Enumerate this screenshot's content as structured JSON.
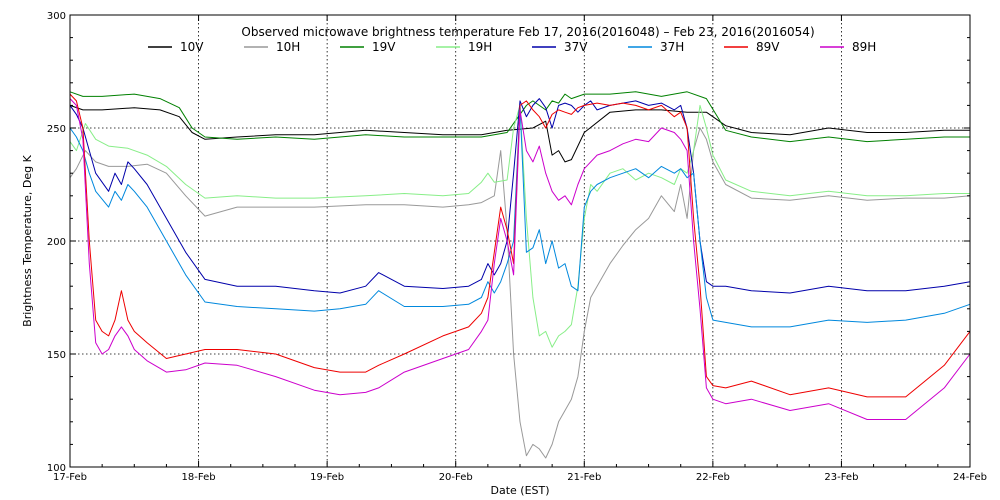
{
  "chart_data": {
    "type": "line",
    "title": "Observed microwave brightness temperature Feb 17, 2016(2016048) – Feb 23, 2016(2016054)",
    "xlabel": "Date (EST)",
    "ylabel": "Brightness Temperature, Deg K",
    "xlim": [
      0,
      7
    ],
    "ylim": [
      100,
      300
    ],
    "categories": [
      "17-Feb",
      "18-Feb",
      "19-Feb",
      "20-Feb",
      "21-Feb",
      "22-Feb",
      "23-Feb",
      "24-Feb"
    ],
    "yticks": [
      "100",
      "150",
      "200",
      "250",
      "300"
    ],
    "ytick_values": [
      100,
      150,
      200,
      250,
      300
    ],
    "grid": true,
    "legend_position": "top",
    "series": [
      {
        "name": "10V",
        "color": "#000000",
        "x": [
          0,
          0.1,
          0.25,
          0.5,
          0.7,
          0.85,
          0.95,
          1.05,
          1.3,
          1.6,
          1.9,
          2.3,
          2.6,
          2.9,
          3.2,
          3.4,
          3.6,
          3.7,
          3.75,
          3.8,
          3.85,
          3.9,
          4.0,
          4.2,
          4.4,
          4.6,
          4.8,
          4.95,
          5.1,
          5.3,
          5.6,
          5.9,
          6.2,
          6.5,
          6.8,
          7.0
        ],
        "values": [
          260,
          258,
          258,
          259,
          258,
          255,
          248,
          245,
          246,
          247,
          247,
          249,
          248,
          247,
          247,
          249,
          250,
          253,
          238,
          240,
          235,
          236,
          248,
          257,
          258,
          258,
          257,
          257,
          251,
          248,
          247,
          250,
          248,
          248,
          249,
          249
        ]
      },
      {
        "name": "10H",
        "color": "#999999",
        "x": [
          0,
          0.05,
          0.12,
          0.2,
          0.3,
          0.45,
          0.6,
          0.75,
          0.9,
          1.05,
          1.3,
          1.6,
          1.9,
          2.3,
          2.6,
          2.9,
          3.1,
          3.2,
          3.3,
          3.35,
          3.4,
          3.45,
          3.5,
          3.55,
          3.6,
          3.65,
          3.7,
          3.75,
          3.8,
          3.85,
          3.9,
          3.95,
          4.0,
          4.05,
          4.1,
          4.2,
          4.3,
          4.4,
          4.5,
          4.6,
          4.7,
          4.75,
          4.8,
          4.85,
          4.9,
          4.95,
          5.0,
          5.1,
          5.3,
          5.6,
          5.9,
          6.2,
          6.5,
          6.8,
          7.0
        ],
        "values": [
          228,
          232,
          240,
          235,
          233,
          233,
          234,
          230,
          220,
          211,
          215,
          215,
          215,
          216,
          216,
          215,
          216,
          217,
          220,
          240,
          205,
          150,
          120,
          105,
          110,
          108,
          104,
          110,
          120,
          125,
          130,
          140,
          160,
          175,
          180,
          190,
          198,
          205,
          210,
          220,
          213,
          225,
          210,
          240,
          250,
          245,
          235,
          225,
          219,
          218,
          220,
          218,
          219,
          219,
          220
        ]
      },
      {
        "name": "19V",
        "color": "#008000",
        "x": [
          0,
          0.1,
          0.25,
          0.5,
          0.7,
          0.85,
          0.95,
          1.05,
          1.3,
          1.6,
          1.9,
          2.3,
          2.6,
          2.9,
          3.2,
          3.4,
          3.55,
          3.6,
          3.7,
          3.75,
          3.8,
          3.85,
          3.9,
          4.0,
          4.2,
          4.4,
          4.6,
          4.8,
          4.95,
          5.1,
          5.3,
          5.6,
          5.9,
          6.2,
          6.5,
          6.8,
          7.0
        ],
        "values": [
          266,
          264,
          264,
          265,
          263,
          259,
          250,
          246,
          245,
          246,
          245,
          247,
          246,
          246,
          246,
          248,
          260,
          262,
          258,
          262,
          261,
          265,
          263,
          265,
          265,
          266,
          264,
          266,
          263,
          249,
          246,
          244,
          246,
          244,
          245,
          246,
          246
        ]
      },
      {
        "name": "19H",
        "color": "#88ee88",
        "x": [
          0,
          0.05,
          0.12,
          0.2,
          0.3,
          0.45,
          0.6,
          0.75,
          0.9,
          1.05,
          1.3,
          1.6,
          1.9,
          2.3,
          2.6,
          2.9,
          3.1,
          3.2,
          3.25,
          3.3,
          3.4,
          3.45,
          3.5,
          3.55,
          3.6,
          3.65,
          3.7,
          3.75,
          3.8,
          3.85,
          3.9,
          3.95,
          4.0,
          4.05,
          4.1,
          4.2,
          4.3,
          4.4,
          4.5,
          4.6,
          4.7,
          4.75,
          4.8,
          4.85,
          4.9,
          4.95,
          5.0,
          5.1,
          5.3,
          5.6,
          5.9,
          6.2,
          6.5,
          6.8,
          7.0
        ],
        "values": [
          244,
          240,
          252,
          245,
          242,
          241,
          238,
          233,
          225,
          219,
          220,
          219,
          219,
          220,
          221,
          220,
          221,
          226,
          230,
          226,
          227,
          250,
          260,
          210,
          175,
          158,
          160,
          153,
          158,
          160,
          163,
          180,
          210,
          225,
          222,
          230,
          232,
          227,
          230,
          228,
          225,
          232,
          230,
          240,
          260,
          250,
          238,
          227,
          222,
          220,
          222,
          220,
          220,
          221,
          221
        ]
      },
      {
        "name": "37V",
        "color": "#0000aa",
        "x": [
          0,
          0.05,
          0.1,
          0.15,
          0.2,
          0.3,
          0.35,
          0.4,
          0.45,
          0.5,
          0.6,
          0.75,
          0.9,
          1.05,
          1.3,
          1.6,
          1.9,
          2.1,
          2.3,
          2.4,
          2.6,
          2.9,
          3.1,
          3.2,
          3.25,
          3.3,
          3.35,
          3.4,
          3.45,
          3.5,
          3.55,
          3.6,
          3.65,
          3.7,
          3.75,
          3.8,
          3.85,
          3.9,
          3.95,
          4.0,
          4.05,
          4.1,
          4.2,
          4.3,
          4.4,
          4.5,
          4.6,
          4.7,
          4.75,
          4.8,
          4.85,
          4.9,
          4.95,
          5.0,
          5.1,
          5.3,
          5.6,
          5.9,
          6.2,
          6.5,
          6.8,
          7.0
        ],
        "values": [
          260,
          256,
          250,
          240,
          230,
          222,
          230,
          225,
          235,
          232,
          225,
          210,
          195,
          183,
          180,
          180,
          178,
          177,
          180,
          186,
          180,
          179,
          180,
          183,
          190,
          185,
          190,
          200,
          230,
          262,
          255,
          260,
          263,
          259,
          250,
          260,
          261,
          260,
          257,
          260,
          262,
          258,
          260,
          261,
          262,
          260,
          261,
          258,
          260,
          250,
          230,
          200,
          182,
          180,
          180,
          178,
          177,
          180,
          178,
          178,
          180,
          182
        ]
      },
      {
        "name": "37H",
        "color": "#0088dd",
        "x": [
          0,
          0.05,
          0.1,
          0.15,
          0.2,
          0.3,
          0.35,
          0.4,
          0.45,
          0.5,
          0.6,
          0.75,
          0.9,
          1.05,
          1.3,
          1.6,
          1.9,
          2.1,
          2.3,
          2.4,
          2.6,
          2.9,
          3.1,
          3.2,
          3.25,
          3.3,
          3.35,
          3.4,
          3.45,
          3.5,
          3.55,
          3.6,
          3.65,
          3.7,
          3.75,
          3.8,
          3.85,
          3.9,
          3.95,
          4.0,
          4.05,
          4.1,
          4.2,
          4.3,
          4.4,
          4.5,
          4.6,
          4.7,
          4.75,
          4.8,
          4.85,
          4.9,
          4.95,
          5.0,
          5.1,
          5.3,
          5.6,
          5.9,
          6.2,
          6.5,
          6.8,
          7.0
        ],
        "values": [
          250,
          246,
          240,
          230,
          222,
          215,
          222,
          218,
          225,
          222,
          215,
          200,
          185,
          173,
          171,
          170,
          169,
          170,
          172,
          178,
          171,
          171,
          172,
          175,
          182,
          177,
          182,
          190,
          200,
          260,
          195,
          197,
          205,
          190,
          200,
          188,
          190,
          180,
          178,
          215,
          222,
          225,
          228,
          230,
          232,
          228,
          233,
          230,
          232,
          228,
          230,
          200,
          175,
          165,
          164,
          162,
          162,
          165,
          164,
          165,
          168,
          172
        ]
      },
      {
        "name": "89V",
        "color": "#ee0000",
        "x": [
          0,
          0.05,
          0.1,
          0.15,
          0.2,
          0.25,
          0.3,
          0.35,
          0.4,
          0.45,
          0.5,
          0.6,
          0.75,
          0.9,
          1.05,
          1.3,
          1.6,
          1.9,
          2.1,
          2.3,
          2.4,
          2.6,
          2.9,
          3.1,
          3.2,
          3.25,
          3.3,
          3.35,
          3.4,
          3.45,
          3.5,
          3.55,
          3.6,
          3.65,
          3.7,
          3.75,
          3.8,
          3.85,
          3.9,
          3.95,
          4.0,
          4.1,
          4.2,
          4.3,
          4.4,
          4.5,
          4.6,
          4.7,
          4.75,
          4.8,
          4.85,
          4.9,
          4.95,
          5.0,
          5.1,
          5.3,
          5.6,
          5.9,
          6.2,
          6.5,
          6.8,
          7.0
        ],
        "values": [
          265,
          262,
          250,
          200,
          165,
          160,
          158,
          165,
          178,
          165,
          160,
          155,
          148,
          150,
          152,
          152,
          150,
          144,
          142,
          142,
          145,
          150,
          158,
          162,
          168,
          175,
          195,
          215,
          205,
          190,
          260,
          262,
          258,
          255,
          250,
          256,
          258,
          257,
          256,
          259,
          260,
          261,
          260,
          261,
          260,
          258,
          260,
          255,
          257,
          250,
          210,
          180,
          140,
          136,
          135,
          138,
          132,
          135,
          131,
          131,
          145,
          160
        ]
      },
      {
        "name": "89H",
        "color": "#cc00cc",
        "x": [
          0,
          0.05,
          0.1,
          0.15,
          0.2,
          0.25,
          0.3,
          0.35,
          0.4,
          0.45,
          0.5,
          0.6,
          0.75,
          0.9,
          1.05,
          1.3,
          1.6,
          1.9,
          2.1,
          2.3,
          2.4,
          2.6,
          2.9,
          3.1,
          3.2,
          3.25,
          3.3,
          3.35,
          3.4,
          3.45,
          3.5,
          3.55,
          3.6,
          3.65,
          3.7,
          3.75,
          3.8,
          3.85,
          3.9,
          3.95,
          4.0,
          4.1,
          4.2,
          4.3,
          4.4,
          4.5,
          4.6,
          4.7,
          4.75,
          4.8,
          4.85,
          4.9,
          4.95,
          5.0,
          5.1,
          5.3,
          5.6,
          5.9,
          6.2,
          6.5,
          6.8,
          7.0
        ],
        "values": [
          263,
          260,
          245,
          190,
          155,
          150,
          152,
          158,
          162,
          158,
          152,
          147,
          142,
          143,
          146,
          145,
          140,
          134,
          132,
          133,
          135,
          142,
          148,
          152,
          160,
          165,
          190,
          210,
          200,
          185,
          258,
          240,
          235,
          242,
          230,
          222,
          218,
          220,
          216,
          225,
          232,
          238,
          240,
          243,
          245,
          244,
          250,
          248,
          245,
          240,
          200,
          170,
          135,
          130,
          128,
          130,
          125,
          128,
          121,
          121,
          135,
          150
        ]
      }
    ]
  }
}
